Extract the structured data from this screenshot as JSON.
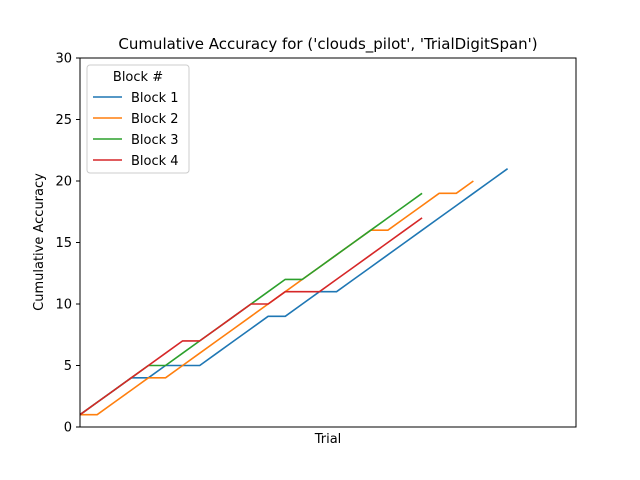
{
  "chart_data": {
    "type": "line",
    "title": "Cumulative Accuracy for ('clouds_pilot', 'TrialDigitSpan')",
    "xlabel": "Trial",
    "ylabel": "Cumulative Accuracy",
    "ylim": [
      0,
      30
    ],
    "xlim": [
      0,
      29
    ],
    "yticks": [
      "0",
      "5",
      "10",
      "15",
      "20",
      "25",
      "30"
    ],
    "grid": false,
    "legend": {
      "title": "Block #",
      "placement": "top-left"
    },
    "series": [
      {
        "name": "Block 1",
        "color": "#1f77b4",
        "x": [
          0,
          1,
          2,
          3,
          4,
          5,
          6,
          7,
          8,
          9,
          10,
          11,
          12,
          13,
          14,
          15,
          16,
          17,
          18,
          19,
          20,
          21,
          22,
          23,
          24,
          25
        ],
        "y": [
          1,
          2,
          3,
          4,
          4,
          5,
          5,
          5,
          6,
          7,
          8,
          9,
          9,
          10,
          11,
          11,
          12,
          13,
          14,
          15,
          16,
          17,
          18,
          19,
          20,
          21
        ]
      },
      {
        "name": "Block 2",
        "color": "#ff7f0e",
        "x": [
          0,
          1,
          2,
          3,
          4,
          5,
          6,
          7,
          8,
          9,
          10,
          11,
          12,
          13,
          14,
          15,
          16,
          17,
          18,
          19,
          20,
          21,
          22,
          23
        ],
        "y": [
          1,
          1,
          2,
          3,
          4,
          4,
          5,
          6,
          7,
          8,
          9,
          10,
          11,
          12,
          13,
          14,
          15,
          16,
          16,
          17,
          18,
          19,
          19,
          20
        ]
      },
      {
        "name": "Block 3",
        "color": "#2ca02c",
        "x": [
          0,
          1,
          2,
          3,
          4,
          5,
          6,
          7,
          8,
          9,
          10,
          11,
          12,
          13,
          14,
          15,
          16,
          17,
          18,
          19,
          20
        ],
        "y": [
          1,
          2,
          3,
          4,
          5,
          5,
          6,
          7,
          8,
          9,
          10,
          11,
          12,
          12,
          13,
          14,
          15,
          16,
          17,
          18,
          19
        ]
      },
      {
        "name": "Block 4",
        "color": "#d62728",
        "x": [
          0,
          1,
          2,
          3,
          4,
          5,
          6,
          7,
          8,
          9,
          10,
          11,
          12,
          13,
          14,
          15,
          16,
          17,
          18,
          19,
          20
        ],
        "y": [
          1,
          2,
          3,
          4,
          5,
          6,
          7,
          7,
          8,
          9,
          10,
          10,
          11,
          11,
          11,
          12,
          13,
          14,
          15,
          16,
          17
        ]
      }
    ]
  }
}
